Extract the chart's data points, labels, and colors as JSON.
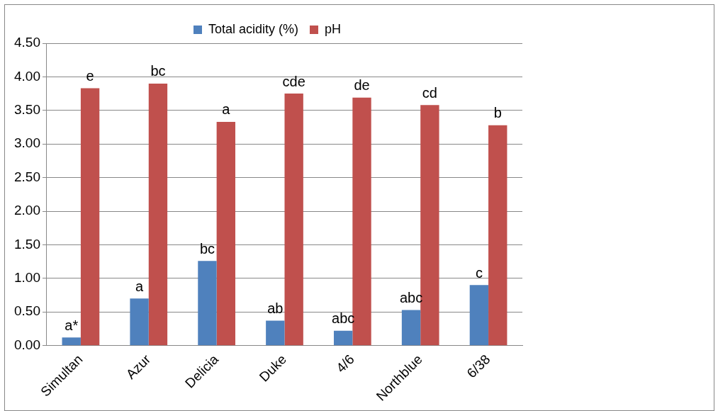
{
  "chart_data": {
    "type": "bar",
    "categories": [
      "Simultan",
      "Azur",
      "Delicia",
      "Duke",
      "4/6",
      "Northblue",
      "6/38"
    ],
    "series": [
      {
        "name": "Total acidity (%)",
        "color": "#4f81bd",
        "values": [
          0.12,
          0.7,
          1.26,
          0.37,
          0.22,
          0.53,
          0.9
        ],
        "value_labels": [
          "a*",
          "a",
          "bc",
          "ab",
          "abc",
          "abc",
          "c"
        ]
      },
      {
        "name": "pH",
        "color": "#c0504d",
        "values": [
          3.83,
          3.9,
          3.33,
          3.75,
          3.69,
          3.58,
          3.28
        ],
        "value_labels": [
          "e",
          "bc",
          "a",
          "cde",
          "de",
          "cd",
          "b"
        ]
      }
    ],
    "ylim": [
      0,
      4.5
    ],
    "yticks": [
      {
        "value": 0,
        "label": "0.00"
      },
      {
        "value": 0.5,
        "label": "0.50"
      },
      {
        "value": 1,
        "label": "1.00"
      },
      {
        "value": 1.5,
        "label": "1.50"
      },
      {
        "value": 2,
        "label": "2.00"
      },
      {
        "value": 2.5,
        "label": "2.50"
      },
      {
        "value": 3,
        "label": "3.00"
      },
      {
        "value": 3.5,
        "label": "3.50"
      },
      {
        "value": 4,
        "label": "4.00"
      },
      {
        "value": 4.5,
        "label": "4.50"
      }
    ],
    "grid": "y",
    "legend": "top"
  }
}
